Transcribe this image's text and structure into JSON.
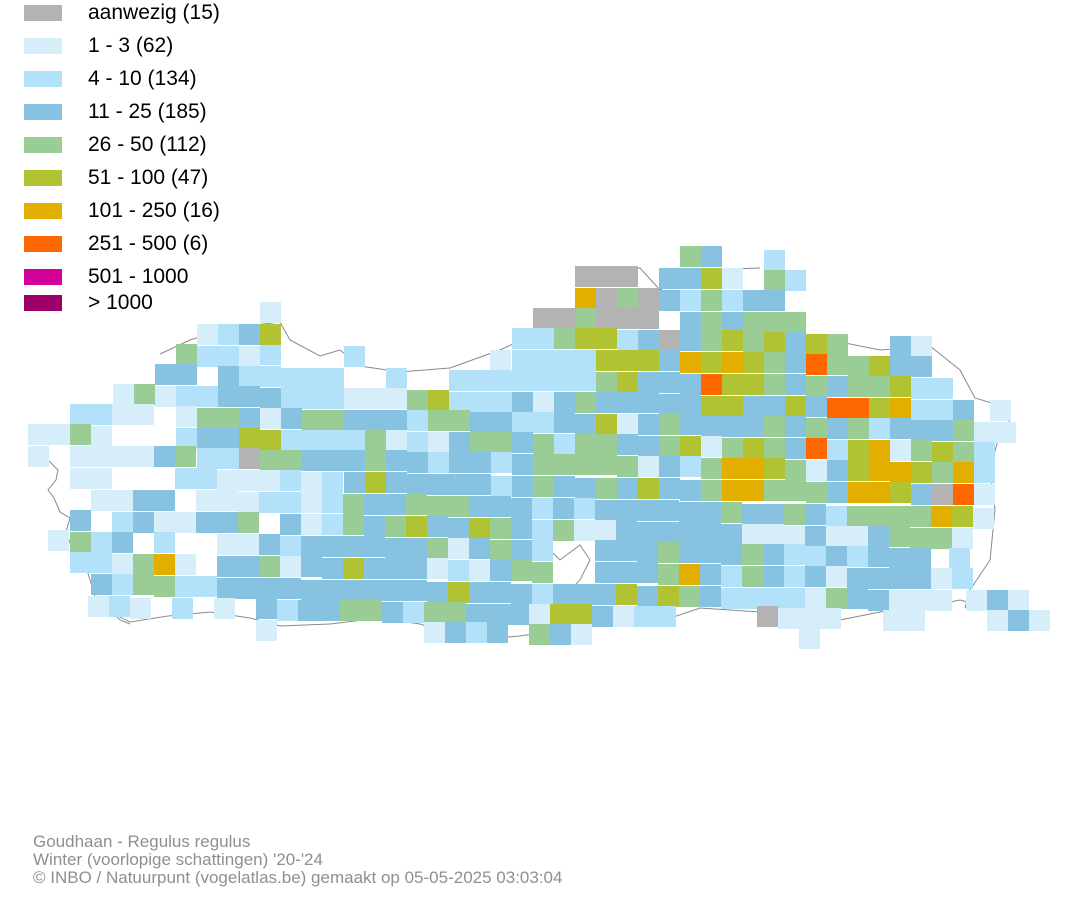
{
  "legend": [
    {
      "label": "aanwezig (15)",
      "color": "#b3b3b3"
    },
    {
      "label": "1 - 3 (62)",
      "color": "#d6eefa"
    },
    {
      "label": "4 - 10 (134)",
      "color": "#b2e1f9"
    },
    {
      "label": "11 - 25 (185)",
      "color": "#87c2e0"
    },
    {
      "label": "26 - 50 (112)",
      "color": "#9acd95"
    },
    {
      "label": "51 - 100 (47)",
      "color": "#b1c233"
    },
    {
      "label": "101 - 250 (16)",
      "color": "#e2ae00"
    },
    {
      "label": "251 - 500 (6)",
      "color": "#ff6800"
    },
    {
      "label": "501 - 1000",
      "color": "#d10099"
    },
    {
      "label": "> 1000",
      "color": "#9e0068"
    }
  ],
  "footer": {
    "species": "Goudhaan - Regulus regulus",
    "period": "Winter (voorlopige schattingen) '20-'24",
    "credit": "© INBO / Natuurpunt (vogelatlas.be) gemaakt op 05-05-2025 03:03:04"
  }
}
